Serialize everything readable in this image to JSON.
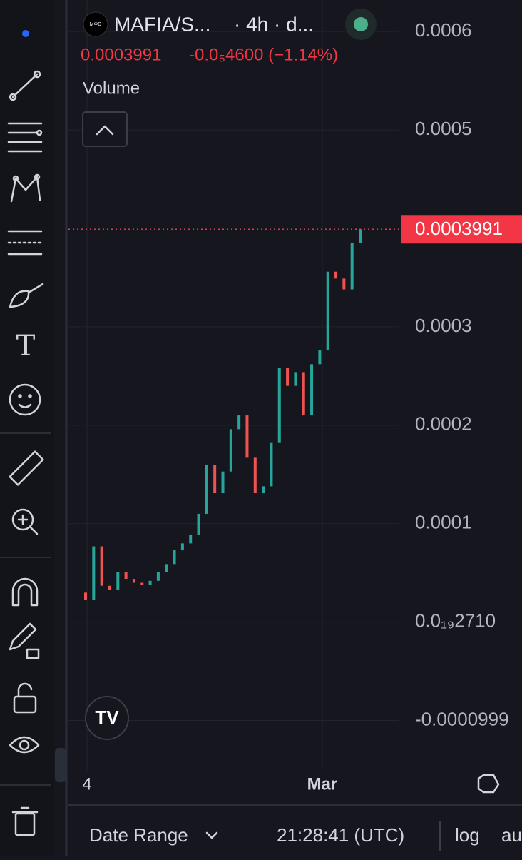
{
  "header": {
    "symbol": "MAFIA/S...",
    "interval": "· 4h · d...",
    "price": "0.0003991",
    "change": "-0.0₅4600 (−1.14%)",
    "indicator": "Volume"
  },
  "chart_data": {
    "type": "candlestick",
    "ylim": [
      -0.000151,
      0.000632
    ],
    "yticks": [
      0.0006,
      0.0005,
      0.0003,
      0.0002,
      0.0001,
      {
        "value": 2.71e-20,
        "label": "0.0₁₉2710"
      },
      -9.99e-05
    ],
    "yticks_labels_note_free": null,
    "x_labels": [
      "4",
      "Mar"
    ],
    "up_color": "#26a69a",
    "down_color": "#ef5350",
    "open": [
      3e-05,
      2.25e-05,
      7.7e-05,
      3.7e-05,
      3.3e-05,
      5.1e-05,
      4.4e-05,
      4e-05,
      3.8e-05,
      4.2e-05,
      5.1e-05,
      5.9e-05,
      7.3e-05,
      8e-05,
      8.9e-05,
      0.00011,
      0.00016,
      0.000131,
      0.000153,
      0.000196,
      0.00021,
      0.000167,
      0.000131,
      0.000138,
      0.000182,
      0.000258,
      0.00024,
      0.000254,
      0.00021,
      0.000262,
      0.000276,
      0.000356,
      0.000349,
      0.000338,
      0.000385
    ],
    "close": [
      2.25e-05,
      7.7e-05,
      3.7e-05,
      3.3e-05,
      5.1e-05,
      4.4e-05,
      4e-05,
      3.8e-05,
      4.2e-05,
      5.1e-05,
      5.9e-05,
      7.3e-05,
      8e-05,
      8.9e-05,
      0.00011,
      0.00016,
      0.000131,
      0.000153,
      0.000196,
      0.00021,
      0.000167,
      0.000131,
      0.000138,
      0.000182,
      0.000258,
      0.00024,
      0.000254,
      0.00021,
      0.000262,
      0.000276,
      0.000356,
      0.000349,
      0.000338,
      0.000385,
      0.0003991
    ],
    "last_price": {
      "value": 0.0003991,
      "label": "0.0003991"
    }
  },
  "footer": {
    "date_range": "Date Range",
    "time": "21:28:41 (UTC)",
    "log": "log",
    "auto": "au"
  }
}
